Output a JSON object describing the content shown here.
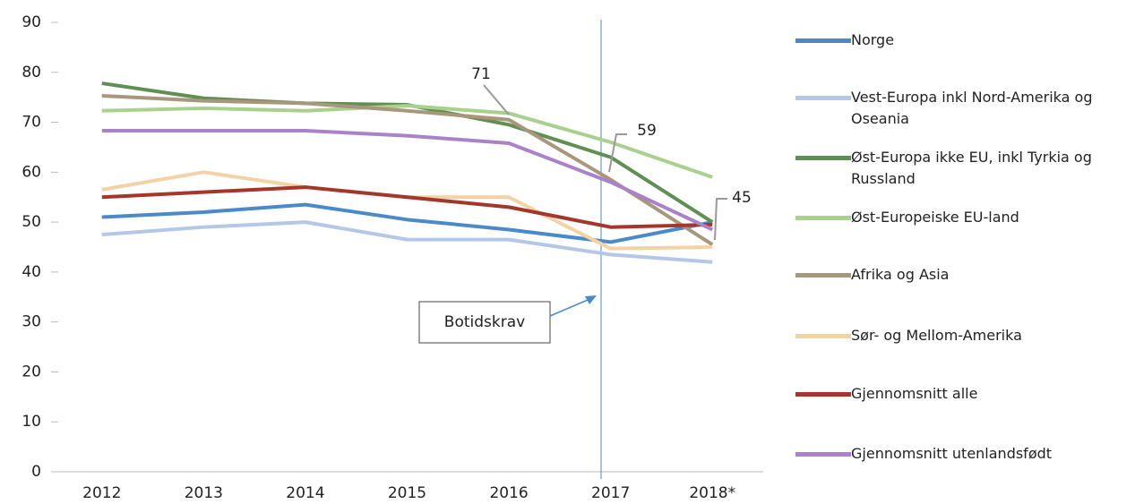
{
  "chart_data": {
    "type": "line",
    "categories": [
      "2012",
      "2013",
      "2014",
      "2015",
      "2016",
      "2017",
      "2018*"
    ],
    "ylim": [
      0,
      90
    ],
    "yticks": [
      0,
      10,
      20,
      30,
      40,
      50,
      60,
      70,
      80,
      90
    ],
    "series": [
      {
        "name": "Norge",
        "color": "#4a8ac9",
        "values": [
          51,
          52,
          53.5,
          50.5,
          48.5,
          46,
          50
        ]
      },
      {
        "name": "Vest-Europa inkl Nord-Amerika og Oseania",
        "color": "#b4c7e7",
        "values": [
          47.5,
          49,
          50,
          46.5,
          46.5,
          43.5,
          42
        ]
      },
      {
        "name": "Øst-Europa ikke EU, inkl Tyrkia og Russland",
        "color": "#5f8f52",
        "values": [
          77.8,
          74.8,
          73.8,
          73.5,
          69.5,
          63,
          50
        ]
      },
      {
        "name": "Øst-Europeiske EU-land",
        "color": "#a9d18e",
        "values": [
          72.3,
          72.8,
          72.3,
          73.3,
          71.8,
          66,
          59
        ]
      },
      {
        "name": "Afrika og Asia",
        "color": "#a8977b",
        "values": [
          75.3,
          74.3,
          73.8,
          72.3,
          70.5,
          58.5,
          45.5
        ]
      },
      {
        "name": "Sør- og Mellom-Amerika",
        "color": "#f3d3a6",
        "values": [
          56.5,
          60,
          57,
          55,
          55,
          44.7,
          45
        ]
      },
      {
        "name": "Gjennomsnitt alle",
        "color": "#a5362b",
        "values": [
          55,
          56,
          57,
          55,
          53,
          49,
          49.5
        ]
      },
      {
        "name": "Gjennomsnitt utenlandsfødt",
        "color": "#a982c9",
        "values": [
          68.3,
          68.3,
          68.3,
          67.3,
          65.8,
          58,
          48.5
        ]
      }
    ],
    "annotations": [
      "71",
      "59",
      "45",
      "Botidskrav"
    ]
  }
}
